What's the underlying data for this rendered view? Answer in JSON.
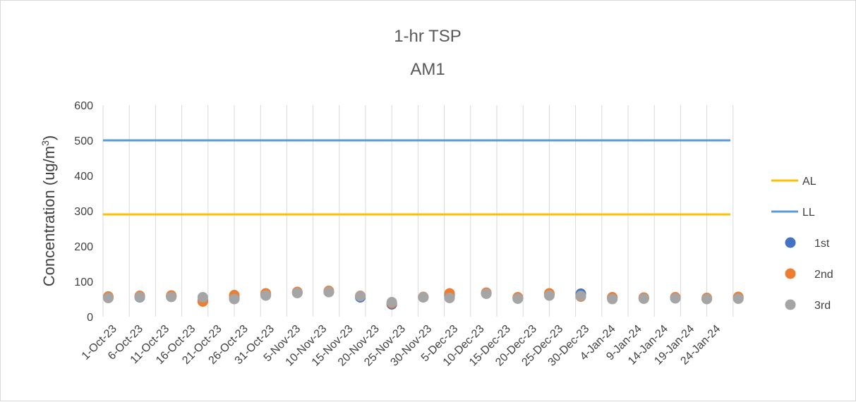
{
  "chart_data": {
    "type": "scatter",
    "title": "1-hr TSP",
    "subtitle": "AM1",
    "ylabel": "Concentration (ug/m",
    "ylabel_superscript": "3",
    "ylabel_close": ")",
    "xlabel": "",
    "ylim": [
      0,
      600
    ],
    "y_ticks": [
      "0",
      "100",
      "200",
      "300",
      "400",
      "500",
      "600"
    ],
    "x_ticks": [
      "1-Oct-23",
      "6-Oct-23",
      "11-Oct-23",
      "16-Oct-23",
      "21-Oct-23",
      "26-Oct-23",
      "31-Oct-23",
      "5-Nov-23",
      "10-Nov-23",
      "15-Nov-23",
      "20-Nov-23",
      "25-Nov-23",
      "30-Nov-23",
      "5-Dec-23",
      "10-Dec-23",
      "15-Dec-23",
      "20-Dec-23",
      "25-Dec-23",
      "30-Dec-23",
      "4-Jan-24",
      "9-Jan-24",
      "14-Jan-24",
      "19-Jan-24",
      "24-Jan-24"
    ],
    "x_range": [
      "2023-10-01",
      "2024-01-30"
    ],
    "grid": "vertical",
    "legend_position": "right",
    "lines": [
      {
        "name": "AL",
        "value": 290,
        "color": "#FFC000"
      },
      {
        "name": "LL",
        "value": 500,
        "color": "#5B9BD5"
      }
    ],
    "series": [
      {
        "name": "1st",
        "color": "#4472C4",
        "points": [
          [
            "2023-10-02",
            55
          ],
          [
            "2023-10-08",
            55
          ],
          [
            "2023-10-14",
            57
          ],
          [
            "2023-10-20",
            45
          ],
          [
            "2023-10-26",
            53
          ],
          [
            "2023-11-01",
            62
          ],
          [
            "2023-11-07",
            68
          ],
          [
            "2023-11-13",
            70
          ],
          [
            "2023-11-19",
            55
          ],
          [
            "2023-11-25",
            35
          ],
          [
            "2023-12-01",
            55
          ],
          [
            "2023-12-06",
            60
          ],
          [
            "2023-12-13",
            66
          ],
          [
            "2023-12-19",
            52
          ],
          [
            "2023-12-25",
            62
          ],
          [
            "2023-12-31",
            65
          ],
          [
            "2024-01-06",
            53
          ],
          [
            "2024-01-12",
            53
          ],
          [
            "2024-01-18",
            53
          ],
          [
            "2024-01-24",
            51
          ],
          [
            "2024-01-30",
            53
          ]
        ]
      },
      {
        "name": "2nd",
        "color": "#ED7D31",
        "points": [
          [
            "2023-10-02",
            57
          ],
          [
            "2023-10-08",
            59
          ],
          [
            "2023-10-14",
            60
          ],
          [
            "2023-10-20",
            43
          ],
          [
            "2023-10-26",
            61
          ],
          [
            "2023-11-01",
            66
          ],
          [
            "2023-11-07",
            70
          ],
          [
            "2023-11-13",
            73
          ],
          [
            "2023-11-19",
            59
          ],
          [
            "2023-11-25",
            38
          ],
          [
            "2023-12-01",
            56
          ],
          [
            "2023-12-06",
            66
          ],
          [
            "2023-12-13",
            68
          ],
          [
            "2023-12-19",
            55
          ],
          [
            "2023-12-25",
            66
          ],
          [
            "2023-12-31",
            57
          ],
          [
            "2024-01-06",
            55
          ],
          [
            "2024-01-12",
            54
          ],
          [
            "2024-01-18",
            55
          ],
          [
            "2024-01-24",
            53
          ],
          [
            "2024-01-30",
            56
          ]
        ]
      },
      {
        "name": "3rd",
        "color": "#A5A5A5",
        "points": [
          [
            "2023-10-02",
            53
          ],
          [
            "2023-10-08",
            56
          ],
          [
            "2023-10-14",
            56
          ],
          [
            "2023-10-20",
            55
          ],
          [
            "2023-10-26",
            50
          ],
          [
            "2023-11-01",
            60
          ],
          [
            "2023-11-07",
            67
          ],
          [
            "2023-11-13",
            70
          ],
          [
            "2023-11-19",
            58
          ],
          [
            "2023-11-25",
            41
          ],
          [
            "2023-12-01",
            55
          ],
          [
            "2023-12-06",
            53
          ],
          [
            "2023-12-13",
            65
          ],
          [
            "2023-12-19",
            51
          ],
          [
            "2023-12-25",
            60
          ],
          [
            "2023-12-31",
            59
          ],
          [
            "2024-01-06",
            50
          ],
          [
            "2024-01-12",
            51
          ],
          [
            "2024-01-18",
            52
          ],
          [
            "2024-01-24",
            50
          ],
          [
            "2024-01-30",
            51
          ]
        ]
      }
    ]
  }
}
